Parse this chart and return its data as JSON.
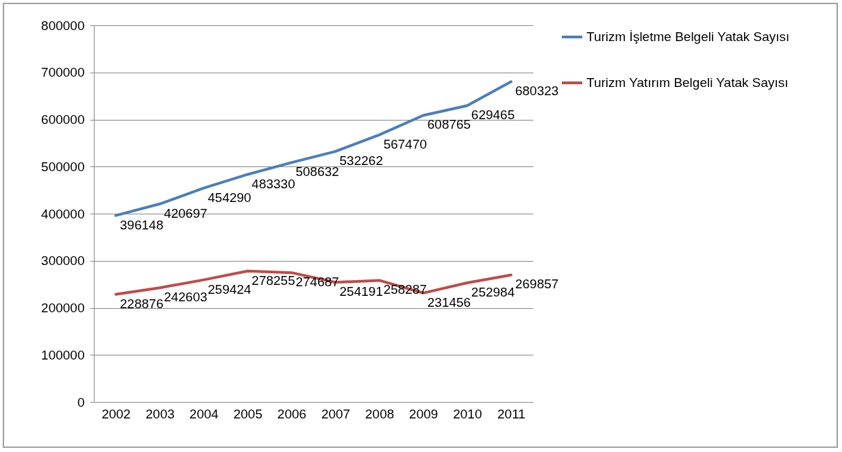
{
  "chart_data": {
    "type": "line",
    "categories": [
      "2002",
      "2003",
      "2004",
      "2005",
      "2006",
      "2007",
      "2008",
      "2009",
      "2010",
      "2011"
    ],
    "series": [
      {
        "name": "Turizm İşletme Belgeli Yatak Sayısı",
        "color": "#4a7ebb",
        "values": [
          396148,
          420697,
          454290,
          483330,
          508632,
          532262,
          567470,
          608765,
          629465,
          680323
        ]
      },
      {
        "name": "Turizm Yatırım Belgeli Yatak Sayısı",
        "color": "#be4b48",
        "values": [
          228876,
          242603,
          259424,
          278255,
          274687,
          254191,
          258287,
          231456,
          252984,
          269857
        ]
      }
    ],
    "ylim": [
      0,
      800000
    ],
    "yticks": [
      0,
      100000,
      200000,
      300000,
      400000,
      500000,
      600000,
      700000,
      800000
    ],
    "grid": "y",
    "legend": "right",
    "data_labels": true,
    "marker": "none"
  }
}
